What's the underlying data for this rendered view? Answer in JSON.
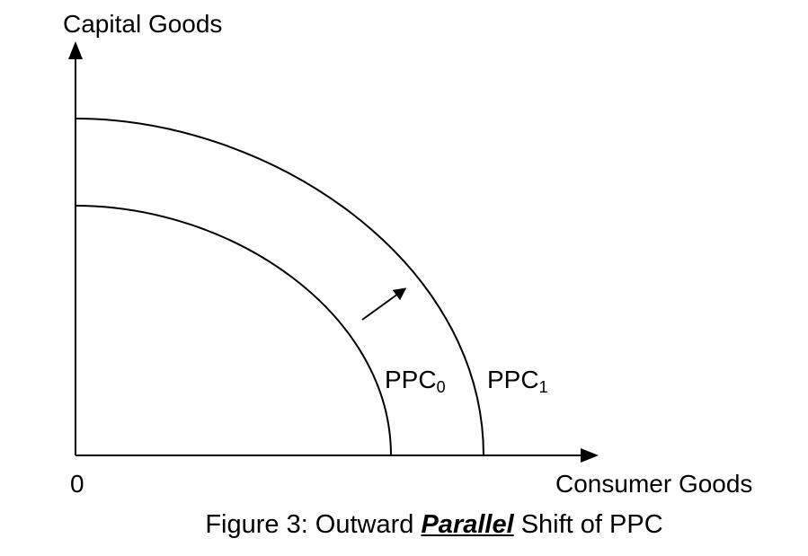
{
  "y_axis_label": "Capital Goods",
  "x_axis_label": "Consumer Goods",
  "origin_label": "0",
  "curves": [
    {
      "label": "PPC",
      "subscript": "0"
    },
    {
      "label": "PPC",
      "subscript": "1"
    }
  ],
  "caption": {
    "prefix": "Figure 3: Outward ",
    "emphasis": "Parallel",
    "suffix": " Shift of PPC"
  },
  "colors": {
    "line": "#000000",
    "background": "#ffffff"
  }
}
